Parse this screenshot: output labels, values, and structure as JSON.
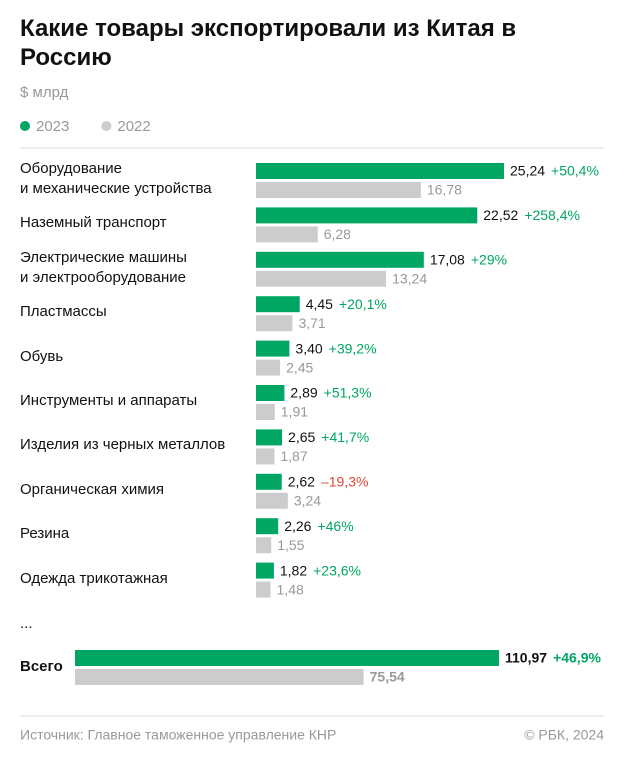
{
  "title": "Какие товары экспортировали из Китая в Россию",
  "subtitle": "$ млрд",
  "ellipsis": "...",
  "footer": {
    "source": "Источник: Главное таможенное управление КНР",
    "credit": "© РБК, 2024"
  },
  "chart_data": [
    {
      "type": "hbar",
      "categories": [
        "Оборудование\nи механические устройства",
        "Наземный транспорт",
        "Электрические машины\nи электрооборудование",
        "Пластмассы",
        "Обувь",
        "Инструменты и аппараты",
        "Изделия из черных металлов",
        "Органическая химия",
        "Резина",
        "Одежда трикотажная"
      ],
      "series": [
        {
          "name": "2023",
          "color": "#00a661",
          "values": [
            25.24,
            22.52,
            17.08,
            4.45,
            3.4,
            2.89,
            2.65,
            2.62,
            2.26,
            1.82
          ],
          "value_labels": [
            "25,24",
            "22,52",
            "17,08",
            "4,45",
            "3,40",
            "2,89",
            "2,65",
            "2,62",
            "2,26",
            "1,82"
          ]
        },
        {
          "name": "2022",
          "color": "#cccccc",
          "values": [
            16.78,
            6.28,
            13.24,
            3.71,
            2.45,
            1.91,
            1.87,
            3.24,
            1.55,
            1.48
          ],
          "value_labels": [
            "16,78",
            "6,28",
            "13,24",
            "3,71",
            "2,45",
            "1,91",
            "1,87",
            "3,24",
            "1,55",
            "1,48"
          ]
        }
      ],
      "change_labels": [
        "+50,4%",
        "+258,4%",
        "+29%",
        "+20,1%",
        "+39,2%",
        "+51,3%",
        "+41,7%",
        "–19,3%",
        "+46%",
        "+23,6%"
      ],
      "positive_color": "#00a661",
      "negative_color": "#e0463b"
    },
    {
      "type": "hbar",
      "categories": [
        "Всего"
      ],
      "series": [
        {
          "color": "#00a661",
          "values": [
            110.97
          ],
          "value_labels": [
            "110,97"
          ]
        },
        {
          "color": "#cccccc",
          "values": [
            75.54
          ],
          "value_labels": [
            "75,54"
          ]
        }
      ],
      "change_labels": [
        "+46,9%"
      ],
      "positive_color": "#00a661",
      "negative_color": "#e0463b"
    }
  ]
}
